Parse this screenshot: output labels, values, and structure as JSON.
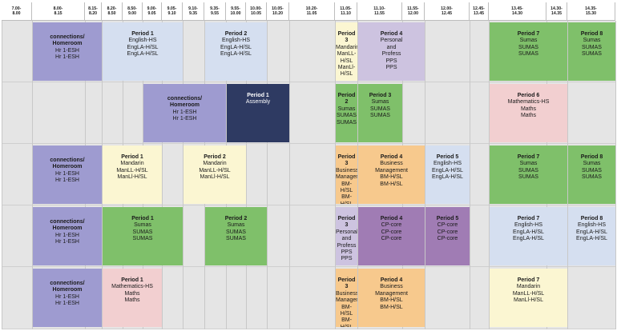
{
  "header": [
    {
      "label": "7.00-\n8.00"
    },
    {
      "label": "8.00-\n8.15"
    },
    {
      "label": "8.15-\n8.20"
    },
    {
      "label": "8.20-\n8.50"
    },
    {
      "label": "8.50-\n9.00"
    },
    {
      "label": "9.00-\n9.05"
    },
    {
      "label": "9.05-\n9.10"
    },
    {
      "label": "9.10-\n9.35"
    },
    {
      "label": "9.35-\n9.55"
    },
    {
      "label": "9.55-\n10.00"
    },
    {
      "label": "10.00-\n10.05"
    },
    {
      "label": "10.05-\n10.20"
    },
    {
      "label": "10.20-\n11.05"
    },
    {
      "label": "11.05-\n11.10"
    },
    {
      "label": "11.10-\n11.55"
    },
    {
      "label": "11.55-\n12.00"
    },
    {
      "label": "12.00-\n12.45"
    },
    {
      "label": "12.45-\n13.45"
    },
    {
      "label": "13.45-\n14.30"
    },
    {
      "label": "14.30-\n14.35"
    },
    {
      "label": "14.35-\n15.30"
    }
  ],
  "rows": [
    {
      "blocks": [
        {
          "title": "connections/\nHomeroom",
          "lines": [
            "Hr 1-ESH",
            "Hr 1-ESH"
          ],
          "color": "#9e9bd0"
        },
        {
          "title": "Period 1",
          "lines": [
            "English-HS",
            "EngLA-H/SL",
            "EngLA-H/SL"
          ],
          "color": "#d5dff0"
        },
        {
          "title": "Period 2",
          "lines": [
            "English-HS",
            "EngLA-H/SL",
            "EngLA-H/SL"
          ],
          "color": "#d5dff0"
        },
        {
          "title": "Period 3",
          "lines": [
            "Mandarin",
            "ManLL-H/SL",
            "ManLl-H/SL"
          ],
          "color": "#fbf6d2"
        },
        {
          "title": "Period 4",
          "lines": [
            "Personal",
            "and",
            "Profess",
            "PPS",
            "PPS"
          ],
          "color": "#cdc3e0"
        },
        {
          "title": "Period 7",
          "lines": [
            "Sumas",
            "SUMAS",
            "SUMAS"
          ],
          "color": "#7fc06a"
        },
        {
          "title": "Period 8",
          "lines": [
            "Sumas",
            "SUMAS",
            "SUMAS"
          ],
          "color": "#7fc06a"
        }
      ]
    },
    {
      "blocks": [
        {
          "title": "connections/\nHomeroom",
          "lines": [
            "Hr 1-ESH",
            "Hr 1-ESH"
          ],
          "color": "#9e9bd0"
        },
        {
          "title": "Period 1",
          "lines": [
            "Assembly"
          ],
          "color": "#2e3a62"
        },
        {
          "title": "Period 2",
          "lines": [
            "Sumas",
            "SUMAS",
            "SUMAS"
          ],
          "color": "#7fc06a"
        },
        {
          "title": "Period 3",
          "lines": [
            "Sumas",
            "SUMAS",
            "SUMAS"
          ],
          "color": "#7fc06a"
        },
        {
          "title": "Period 6",
          "lines": [
            "Mathematics-HS",
            "Maths",
            "Maths"
          ],
          "color": "#f2cfd0"
        }
      ]
    },
    {
      "blocks": [
        {
          "title": "connections/\nHomeroom",
          "lines": [
            "Hr 1-ESH",
            "Hr 1-ESH"
          ],
          "color": "#9e9bd0"
        },
        {
          "title": "Period 1",
          "lines": [
            "Mandarin",
            "ManLL-H/SL",
            "ManLl-H/SL"
          ],
          "color": "#fbf6d2"
        },
        {
          "title": "Period 2",
          "lines": [
            "Mandarin",
            "ManLL-H/SL",
            "ManLl-H/SL"
          ],
          "color": "#fbf6d2"
        },
        {
          "title": "Period 3",
          "lines": [
            "Business",
            "Management",
            "BM-H/SL",
            "BM-H/SL"
          ],
          "color": "#f7c98d"
        },
        {
          "title": "Period 4",
          "lines": [
            "Business",
            "Management",
            "BM-H/SL",
            "BM-H/SL"
          ],
          "color": "#f7c98d"
        },
        {
          "title": "Period 5",
          "lines": [
            "English-HS",
            "EngLA-H/SL",
            "EngLA-H/SL"
          ],
          "color": "#d5dff0"
        },
        {
          "title": "Period 7",
          "lines": [
            "Sumas",
            "SUMAS",
            "SUMAS"
          ],
          "color": "#7fc06a"
        },
        {
          "title": "Period 8",
          "lines": [
            "Sumas",
            "SUMAS",
            "SUMAS"
          ],
          "color": "#7fc06a"
        }
      ]
    },
    {
      "blocks": [
        {
          "title": "connections/\nHomeroom",
          "lines": [
            "Hr 1-ESH",
            "Hr 1-ESH"
          ],
          "color": "#9e9bd0"
        },
        {
          "title": "Period 1",
          "lines": [
            "Sumas",
            "SUMAS",
            "SUMAS"
          ],
          "color": "#7fc06a"
        },
        {
          "title": "Period 2",
          "lines": [
            "Sumas",
            "SUMAS",
            "SUMAS"
          ],
          "color": "#7fc06a"
        },
        {
          "title": "Period 3",
          "lines": [
            "Personal",
            "and",
            "Profess",
            "PPS",
            "PPS"
          ],
          "color": "#cdc3e0"
        },
        {
          "title": "Period 4",
          "lines": [
            "CP-core",
            "CP-core",
            "CP-core"
          ],
          "color": "#a07cb4"
        },
        {
          "title": "Period 5",
          "lines": [
            "CP-core",
            "CP-core",
            "CP-core"
          ],
          "color": "#a07cb4"
        },
        {
          "title": "Period 7",
          "lines": [
            "English-HS",
            "EngLA-H/SL",
            "EngLA-H/SL"
          ],
          "color": "#d5dff0"
        },
        {
          "title": "Period 8",
          "lines": [
            "English-HS",
            "EngLA-H/SL",
            "EngLA-H/SL"
          ],
          "color": "#d5dff0"
        }
      ]
    },
    {
      "blocks": [
        {
          "title": "connections/\nHomeroom",
          "lines": [
            "Hr 1-ESH",
            "Hr 1-ESH"
          ],
          "color": "#9e9bd0"
        },
        {
          "title": "Period 1",
          "lines": [
            "Mathematics-HS",
            "Maths",
            "Maths"
          ],
          "color": "#f2cfd0"
        },
        {
          "title": "Period 3",
          "lines": [
            "Business",
            "Management",
            "BM-H/SL",
            "BM-H/SL"
          ],
          "color": "#f7c98d"
        },
        {
          "title": "Period 4",
          "lines": [
            "Business",
            "Management",
            "BM-H/SL",
            "BM-H/SL"
          ],
          "color": "#f7c98d"
        },
        {
          "title": "Period 7",
          "lines": [
            "Mandarin",
            "ManLL-H/SL",
            "ManLl-H/SL"
          ],
          "color": "#fbf6d2"
        }
      ]
    }
  ]
}
